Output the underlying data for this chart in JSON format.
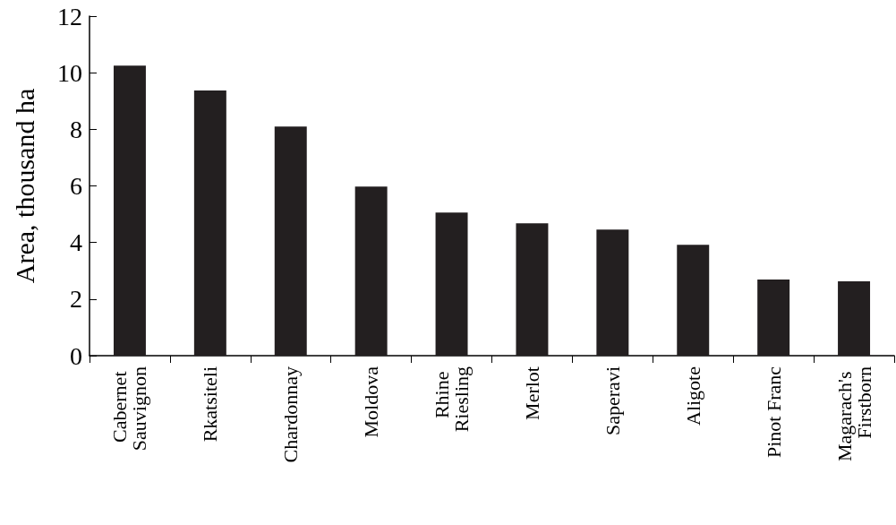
{
  "chart_data": {
    "type": "bar",
    "ylabel": "Area, thousand ha",
    "categories": [
      "Cabernet Sauvignon",
      "Rkatsiteli",
      "Chardonnay",
      "Moldova",
      "Rhine Riesling",
      "Merlot",
      "Saperavi",
      "Aligote",
      "Pinot Franc",
      "Magarach's Firstborn"
    ],
    "values": [
      10.25,
      9.37,
      8.1,
      5.98,
      5.06,
      4.68,
      4.46,
      3.92,
      2.69,
      2.63
    ],
    "color": "#231f20",
    "ylim": [
      0,
      12
    ],
    "yticks": [
      0,
      2,
      4,
      6,
      8,
      10,
      12
    ],
    "grid": false
  }
}
